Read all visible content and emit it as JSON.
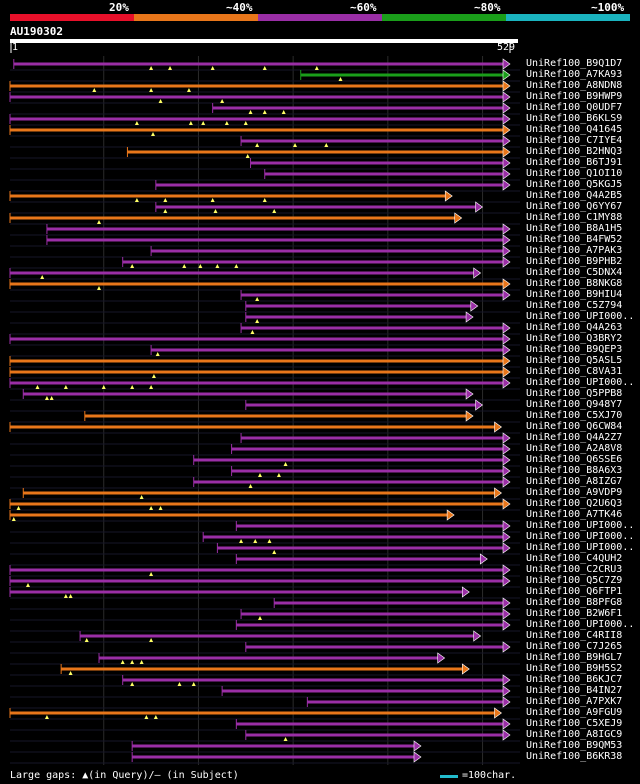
{
  "legend": [
    {
      "label": "20%",
      "color": "#e8102a"
    },
    {
      "label": "~40%",
      "color": "#e8761a"
    },
    {
      "label": "~60%",
      "color": "#9a2ea6"
    },
    {
      "label": "~80%",
      "color": "#1a9e1a"
    },
    {
      "label": "~100%",
      "color": "#1ab3bf"
    }
  ],
  "query": {
    "id": "AU190302",
    "start_label": "1",
    "end_label": "529"
  },
  "footer": {
    "text": "Large gaps: ▲(in Query)/– (in Subject)",
    "scale_label": "=100char.",
    "scale_color": "#22bbcc"
  },
  "chart_data": {
    "type": "blast-alignment",
    "query_length": 529,
    "identity_bins": [
      "20%",
      "~40%",
      "~60%",
      "~80%",
      "~100%"
    ],
    "hits": [
      {
        "name": "UniRef100_B9Q1D7",
        "start": 5,
        "end": 529,
        "color": "#9a2ea6",
        "gaps": [
          150,
          170,
          215,
          270,
          325
        ]
      },
      {
        "name": "UniRef100_A7KA93",
        "start": 308,
        "end": 529,
        "color": "#1a9e1a",
        "gaps": [
          350
        ]
      },
      {
        "name": "UniRef100_A8NDN8",
        "start": 1,
        "end": 529,
        "color": "#e8761a",
        "gaps": [
          90,
          150,
          190
        ]
      },
      {
        "name": "UniRef100_B9HWP9",
        "start": 1,
        "end": 529,
        "color": "#9a2ea6",
        "gaps": [
          160,
          225
        ]
      },
      {
        "name": "UniRef100_Q0UDF7",
        "start": 215,
        "end": 529,
        "color": "#9a2ea6",
        "gaps": [
          255,
          270,
          290
        ]
      },
      {
        "name": "UniRef100_B6KLS9",
        "start": 1,
        "end": 529,
        "color": "#9a2ea6",
        "gaps": [
          135,
          192,
          205,
          230,
          250
        ]
      },
      {
        "name": "UniRef100_Q41645",
        "start": 1,
        "end": 529,
        "color": "#e8761a",
        "gaps": [
          152
        ]
      },
      {
        "name": "UniRef100_C7IYE4",
        "start": 245,
        "end": 529,
        "color": "#9a2ea6",
        "gaps": [
          262,
          302,
          335
        ]
      },
      {
        "name": "UniRef100_B2HNQ3",
        "start": 125,
        "end": 529,
        "color": "#e8761a",
        "gaps": [
          252
        ]
      },
      {
        "name": "UniRef100_B6TJ91",
        "start": 255,
        "end": 529,
        "color": "#9a2ea6",
        "gaps": []
      },
      {
        "name": "UniRef100_Q1OI10",
        "start": 270,
        "end": 529,
        "color": "#9a2ea6",
        "gaps": []
      },
      {
        "name": "UniRef100_Q5KGJ5",
        "start": 155,
        "end": 529,
        "color": "#9a2ea6",
        "gaps": []
      },
      {
        "name": "UniRef100_Q4A2B5",
        "start": 1,
        "end": 468,
        "color": "#e8761a",
        "gaps": [
          135,
          165,
          215,
          270
        ]
      },
      {
        "name": "UniRef100_Q6YY67",
        "start": 155,
        "end": 500,
        "color": "#9a2ea6",
        "gaps": [
          165,
          218,
          280
        ]
      },
      {
        "name": "UniRef100_C1MY88",
        "start": 1,
        "end": 478,
        "color": "#e8761a",
        "gaps": [
          95
        ]
      },
      {
        "name": "UniRef100_B8A1H5",
        "start": 40,
        "end": 529,
        "color": "#9a2ea6",
        "gaps": []
      },
      {
        "name": "UniRef100_B4FW52",
        "start": 40,
        "end": 529,
        "color": "#9a2ea6",
        "gaps": []
      },
      {
        "name": "UniRef100_A7PAK3",
        "start": 150,
        "end": 529,
        "color": "#9a2ea6",
        "gaps": []
      },
      {
        "name": "UniRef100_B9PHB2",
        "start": 120,
        "end": 529,
        "color": "#9a2ea6",
        "gaps": [
          130,
          185,
          202,
          220,
          240
        ]
      },
      {
        "name": "UniRef100_C5DNX4",
        "start": 1,
        "end": 498,
        "color": "#9a2ea6",
        "gaps": [
          35
        ]
      },
      {
        "name": "UniRef100_B8NKG8",
        "start": 1,
        "end": 529,
        "color": "#e8761a",
        "gaps": [
          95
        ]
      },
      {
        "name": "UniRef100_B9HIU4",
        "start": 245,
        "end": 529,
        "color": "#9a2ea6",
        "gaps": [
          262
        ]
      },
      {
        "name": "UniRef100_C5Z794",
        "start": 250,
        "end": 495,
        "color": "#9a2ea6",
        "gaps": []
      },
      {
        "name": "UniRef100_UPI000..",
        "start": 250,
        "end": 490,
        "color": "#9a2ea6",
        "gaps": [
          262
        ]
      },
      {
        "name": "UniRef100_Q4A263",
        "start": 245,
        "end": 529,
        "color": "#9a2ea6",
        "gaps": [
          257
        ]
      },
      {
        "name": "UniRef100_Q3BRY2",
        "start": 1,
        "end": 529,
        "color": "#9a2ea6",
        "gaps": []
      },
      {
        "name": "UniRef100_B9QEP3",
        "start": 150,
        "end": 529,
        "color": "#9a2ea6",
        "gaps": [
          157
        ]
      },
      {
        "name": "UniRef100_Q5ASL5",
        "start": 1,
        "end": 529,
        "color": "#e8761a",
        "gaps": []
      },
      {
        "name": "UniRef100_C8VA31",
        "start": 1,
        "end": 529,
        "color": "#e8761a",
        "gaps": [
          153
        ]
      },
      {
        "name": "UniRef100_UPI000..",
        "start": 1,
        "end": 529,
        "color": "#9a2ea6",
        "gaps": [
          30,
          60,
          100,
          130,
          150
        ]
      },
      {
        "name": "UniRef100_Q5PPB8",
        "start": 15,
        "end": 490,
        "color": "#9a2ea6",
        "gaps": [
          40,
          45
        ]
      },
      {
        "name": "UniRef100_Q948Y7",
        "start": 250,
        "end": 500,
        "color": "#9a2ea6",
        "gaps": []
      },
      {
        "name": "UniRef100_C5XJ70",
        "start": 80,
        "end": 490,
        "color": "#e8761a",
        "gaps": []
      },
      {
        "name": "UniRef100_Q6CW84",
        "start": 1,
        "end": 520,
        "color": "#e8761a",
        "gaps": []
      },
      {
        "name": "UniRef100_Q4A2Z7",
        "start": 245,
        "end": 529,
        "color": "#9a2ea6",
        "gaps": []
      },
      {
        "name": "UniRef100_A2A8V8",
        "start": 235,
        "end": 529,
        "color": "#9a2ea6",
        "gaps": []
      },
      {
        "name": "UniRef100_Q6SSE6",
        "start": 195,
        "end": 529,
        "color": "#9a2ea6",
        "gaps": [
          292
        ]
      },
      {
        "name": "UniRef100_B8A6X3",
        "start": 235,
        "end": 529,
        "color": "#9a2ea6",
        "gaps": [
          265,
          285
        ]
      },
      {
        "name": "UniRef100_A8IZG7",
        "start": 195,
        "end": 529,
        "color": "#9a2ea6",
        "gaps": [
          255
        ]
      },
      {
        "name": "UniRef100_A9VDP9",
        "start": 15,
        "end": 520,
        "color": "#e8761a",
        "gaps": [
          140
        ]
      },
      {
        "name": "UniRef100_Q2U6Q3",
        "start": 1,
        "end": 529,
        "color": "#e8761a",
        "gaps": [
          10,
          150,
          160
        ]
      },
      {
        "name": "UniRef100_A7TK46",
        "start": 1,
        "end": 470,
        "color": "#e8761a",
        "gaps": [
          5
        ]
      },
      {
        "name": "UniRef100_UPI000..",
        "start": 240,
        "end": 529,
        "color": "#9a2ea6",
        "gaps": []
      },
      {
        "name": "UniRef100_UPI000..",
        "start": 205,
        "end": 529,
        "color": "#9a2ea6",
        "gaps": [
          245,
          260,
          275
        ]
      },
      {
        "name": "UniRef100_UPI000..",
        "start": 220,
        "end": 529,
        "color": "#9a2ea6",
        "gaps": [
          280
        ]
      },
      {
        "name": "UniRef100_C4QUH2",
        "start": 240,
        "end": 505,
        "color": "#9a2ea6",
        "gaps": []
      },
      {
        "name": "UniRef100_C2CRU3",
        "start": 1,
        "end": 529,
        "color": "#9a2ea6",
        "gaps": [
          150
        ]
      },
      {
        "name": "UniRef100_Q5C7Z9",
        "start": 1,
        "end": 529,
        "color": "#9a2ea6",
        "gaps": [
          20
        ]
      },
      {
        "name": "UniRef100_Q6FTP1",
        "start": 1,
        "end": 486,
        "color": "#9a2ea6",
        "gaps": [
          60,
          65
        ]
      },
      {
        "name": "UniRef100_B8PFG8",
        "start": 280,
        "end": 529,
        "color": "#9a2ea6",
        "gaps": []
      },
      {
        "name": "UniRef100_B2W6F1",
        "start": 245,
        "end": 529,
        "color": "#9a2ea6",
        "gaps": [
          265
        ]
      },
      {
        "name": "UniRef100_UPI000..",
        "start": 240,
        "end": 529,
        "color": "#9a2ea6",
        "gaps": []
      },
      {
        "name": "UniRef100_C4RII8",
        "start": 75,
        "end": 498,
        "color": "#9a2ea6",
        "gaps": [
          82,
          150
        ]
      },
      {
        "name": "UniRef100_C7J265",
        "start": 250,
        "end": 529,
        "color": "#9a2ea6",
        "gaps": []
      },
      {
        "name": "UniRef100_B9HGL7",
        "start": 95,
        "end": 460,
        "color": "#9a2ea6",
        "gaps": [
          120,
          130,
          140
        ]
      },
      {
        "name": "UniRef100_B9H5S2",
        "start": 55,
        "end": 486,
        "color": "#e8761a",
        "gaps": [
          65
        ]
      },
      {
        "name": "UniRef100_B6KJC7",
        "start": 120,
        "end": 529,
        "color": "#9a2ea6",
        "gaps": [
          130,
          180,
          195
        ]
      },
      {
        "name": "UniRef100_B4IN27",
        "start": 225,
        "end": 529,
        "color": "#9a2ea6",
        "gaps": []
      },
      {
        "name": "UniRef100_A7PXK7",
        "start": 315,
        "end": 529,
        "color": "#9a2ea6",
        "gaps": []
      },
      {
        "name": "UniRef100_A9FGU9",
        "start": 1,
        "end": 520,
        "color": "#e8761a",
        "gaps": [
          40,
          145,
          155
        ]
      },
      {
        "name": "UniRef100_C5XEJ9",
        "start": 240,
        "end": 529,
        "color": "#9a2ea6",
        "gaps": []
      },
      {
        "name": "UniRef100_A8IGC9",
        "start": 250,
        "end": 529,
        "color": "#9a2ea6",
        "gaps": [
          292
        ]
      },
      {
        "name": "UniRef100_B9QM53",
        "start": 130,
        "end": 435,
        "color": "#9a2ea6",
        "gaps": []
      },
      {
        "name": "UniRef100_B6KR38",
        "start": 130,
        "end": 435,
        "color": "#9a2ea6",
        "gaps": []
      }
    ]
  }
}
